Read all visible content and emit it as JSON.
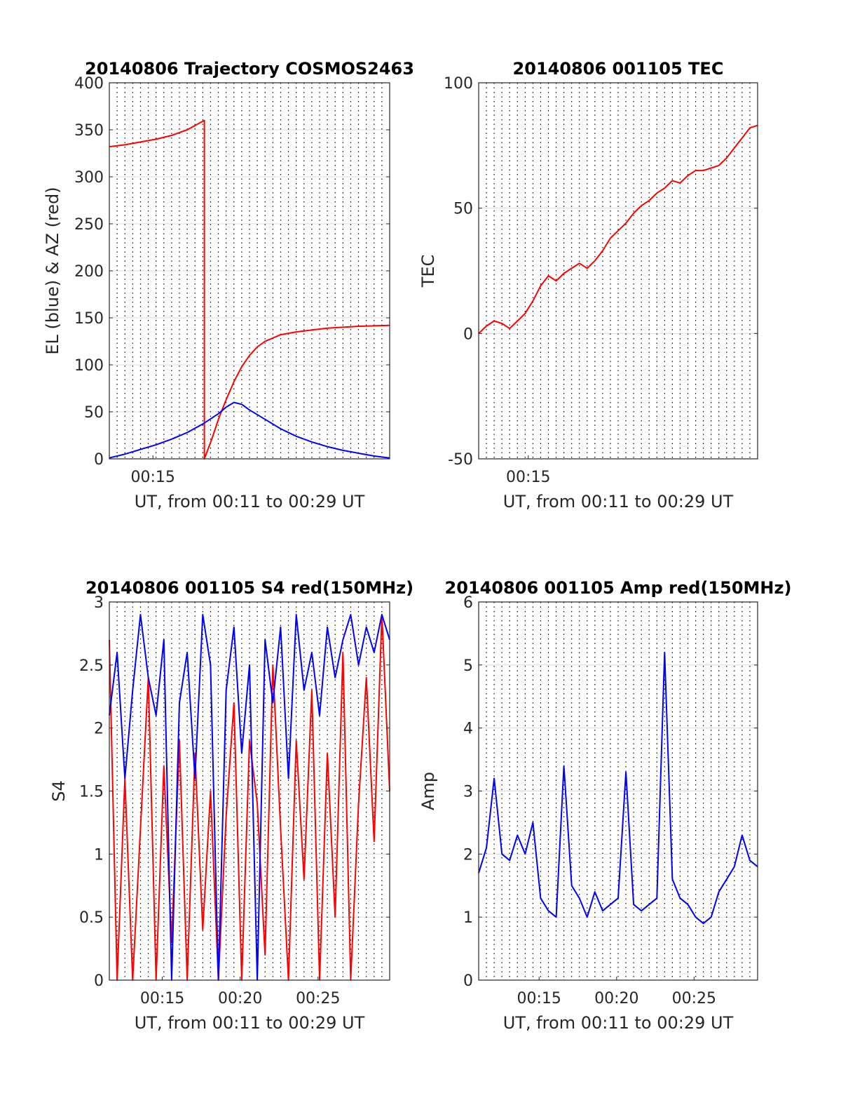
{
  "chart_data": [
    {
      "type": "line",
      "title": "20140806 Trajectory COSMOS2463",
      "xlabel": "UT, from 00:11 to 00:29 UT",
      "ylabel": "EL (blue) & AZ (red)",
      "xlim": [
        11,
        29
      ],
      "ylim": [
        0,
        400
      ],
      "xticks": [
        {
          "x": 13.8,
          "label": "00:15"
        }
      ],
      "yticks": [
        0,
        50,
        100,
        150,
        200,
        250,
        300,
        350,
        400
      ],
      "grid": true,
      "series": [
        {
          "color": "#ff0000",
          "x": [
            11,
            12,
            13,
            14,
            15,
            16,
            17.1,
            17.1,
            17.6,
            18,
            18.5,
            19,
            19.5,
            20,
            20.5,
            21,
            22,
            23,
            24,
            25,
            26,
            27,
            28,
            29
          ],
          "y": [
            332,
            334,
            337,
            340,
            344,
            350,
            360,
            0,
            22,
            42,
            63,
            82,
            98,
            110,
            119,
            125,
            132,
            135,
            137,
            139,
            140,
            141,
            141.5,
            142
          ]
        },
        {
          "color": "#0000ff",
          "x": [
            11,
            12,
            13,
            14,
            15,
            16,
            17,
            18,
            18.5,
            19,
            19.5,
            20,
            21,
            22,
            23,
            24,
            25,
            26,
            27,
            28,
            29
          ],
          "y": [
            1,
            5,
            10,
            15,
            21,
            28,
            37,
            48,
            55,
            60,
            58,
            52,
            42,
            32,
            24,
            18,
            13,
            9,
            6,
            3,
            1
          ]
        }
      ]
    },
    {
      "type": "line",
      "title": "20140806 001105 TEC",
      "xlabel": "UT, from 00:11 to 00:29 UT",
      "ylabel": "TEC",
      "xlim": [
        11,
        29
      ],
      "ylim": [
        -50,
        100
      ],
      "xticks": [
        {
          "x": 14.2,
          "label": "00:15"
        }
      ],
      "yticks": [
        -50,
        0,
        50,
        100
      ],
      "grid": true,
      "series": [
        {
          "color": "#ff0000",
          "x": [
            11,
            11.5,
            12,
            12.5,
            13,
            13.5,
            14,
            14.5,
            15,
            15.5,
            16,
            16.5,
            17,
            17.5,
            18,
            18.5,
            19,
            19.5,
            20,
            20.5,
            21,
            21.5,
            22,
            22.5,
            23,
            23.5,
            24,
            24.5,
            25,
            25.5,
            26,
            26.5,
            27,
            27.5,
            28,
            28.5,
            29
          ],
          "y": [
            0,
            3,
            5,
            4,
            2,
            5,
            8,
            13,
            19,
            23,
            21,
            24,
            26,
            28,
            26,
            29,
            33,
            38,
            41,
            44,
            48,
            51,
            53,
            56,
            58,
            61,
            60,
            63,
            65,
            65,
            66,
            67,
            70,
            74,
            78,
            82,
            83
          ]
        }
      ]
    },
    {
      "type": "line",
      "title": "20140806 001105 S4 red(150MHz)",
      "xlabel": "UT, from 00:11 to 00:29 UT",
      "ylabel": "S4",
      "xlim": [
        11,
        29
      ],
      "ylim": [
        0,
        3
      ],
      "xticks": [
        {
          "x": 14.4,
          "label": "00:15"
        },
        {
          "x": 19.4,
          "label": "00:20"
        },
        {
          "x": 24.4,
          "label": "00:25"
        }
      ],
      "yticks": [
        0,
        0.5,
        1,
        1.5,
        2,
        2.5,
        3
      ],
      "grid": true,
      "series": [
        {
          "color": "#ff0000",
          "x": [
            11,
            11.5,
            12,
            12.5,
            13,
            13.5,
            14,
            14.5,
            15,
            15.5,
            16,
            16.5,
            17,
            17.5,
            18,
            18.5,
            19,
            19.5,
            20,
            20.5,
            21,
            21.5,
            22,
            22.5,
            23,
            23.5,
            24,
            24.5,
            25,
            25.5,
            26,
            26.5,
            27,
            27.5,
            28,
            28.5,
            29
          ],
          "y": [
            2.7,
            0,
            1.6,
            0,
            1.2,
            2.4,
            0,
            1.7,
            0.3,
            1.9,
            0,
            1.8,
            0.4,
            1.5,
            0,
            1.3,
            2.2,
            0,
            1.9,
            1.4,
            0.2,
            2.5,
            1.2,
            0,
            1.9,
            0.8,
            2.3,
            0,
            1.8,
            0.5,
            2.6,
            0,
            1.4,
            2.4,
            1.1,
            2.9,
            1.5
          ]
        },
        {
          "color": "#0000ff",
          "x": [
            11,
            11.5,
            12,
            12.5,
            13,
            13.5,
            14,
            14.5,
            15,
            15.5,
            16,
            16.5,
            17,
            17.5,
            18,
            18.5,
            19,
            19.5,
            20,
            20.5,
            21,
            21.5,
            22,
            22.5,
            23,
            23.5,
            24,
            24.5,
            25,
            25.5,
            26,
            26.5,
            27,
            27.5,
            28,
            28.5,
            29
          ],
          "y": [
            2.1,
            2.6,
            1.6,
            2.3,
            2.9,
            2.4,
            2.1,
            2.7,
            0,
            2.2,
            2.6,
            1.6,
            2.9,
            2.5,
            0,
            2.3,
            2.8,
            1.8,
            2.5,
            0,
            2.7,
            2.2,
            2.8,
            1.6,
            2.9,
            2.3,
            2.6,
            2.1,
            2.8,
            2.4,
            2.7,
            2.9,
            2.5,
            2.8,
            2.6,
            2.9,
            2.7
          ]
        }
      ]
    },
    {
      "type": "line",
      "title": "20140806 001105 Amp red(150MHz)",
      "xlabel": "UT, from 00:11 to 00:29 UT",
      "ylabel": "Amp",
      "xlim": [
        11,
        29
      ],
      "ylim": [
        0,
        6
      ],
      "xticks": [
        {
          "x": 14.9,
          "label": "00:15"
        },
        {
          "x": 19.9,
          "label": "00:20"
        },
        {
          "x": 24.9,
          "label": "00:25"
        }
      ],
      "yticks": [
        0,
        1,
        2,
        3,
        4,
        5,
        6
      ],
      "grid": true,
      "series": [
        {
          "color": "#0000ff",
          "x": [
            11,
            11.5,
            12,
            12.5,
            13,
            13.5,
            14,
            14.5,
            15,
            15.5,
            16,
            16.5,
            17,
            17.5,
            18,
            18.5,
            19,
            19.5,
            20,
            20.5,
            21,
            21.5,
            22,
            22.5,
            23,
            23.5,
            24,
            24.5,
            25,
            25.5,
            26,
            26.5,
            27,
            27.5,
            28,
            28.5,
            29
          ],
          "y": [
            1.7,
            2.1,
            3.2,
            2.0,
            1.9,
            2.3,
            2.0,
            2.5,
            1.3,
            1.1,
            1.0,
            3.4,
            1.5,
            1.3,
            1.0,
            1.4,
            1.1,
            1.2,
            1.3,
            3.3,
            1.2,
            1.1,
            1.2,
            1.3,
            5.2,
            1.6,
            1.3,
            1.2,
            1.0,
            0.9,
            1.0,
            1.4,
            1.6,
            1.8,
            2.3,
            1.9,
            1.8
          ]
        }
      ]
    }
  ]
}
